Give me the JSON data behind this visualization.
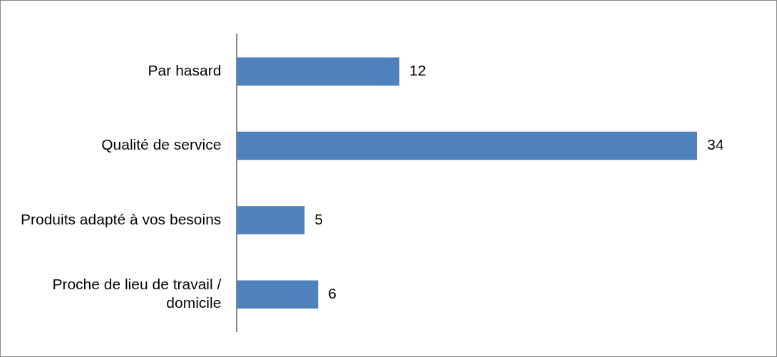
{
  "chart_data": {
    "type": "bar",
    "orientation": "horizontal",
    "categories": [
      "Par hasard",
      "Qualité de service",
      "Produits adapté à vos besoins",
      "Proche de lieu de travail / domicile"
    ],
    "values": [
      12,
      34,
      5,
      6
    ],
    "color": "#4f81bd",
    "data_labels": true,
    "legend": false
  }
}
